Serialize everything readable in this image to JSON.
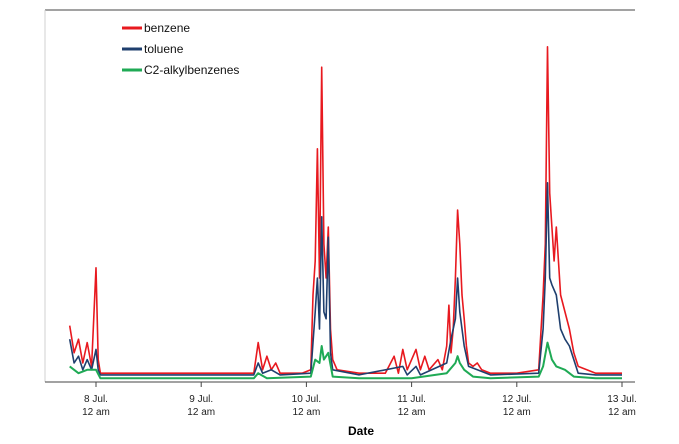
{
  "chart_data": {
    "type": "line",
    "title": "",
    "xlabel": "Date",
    "ylabel": "",
    "grid": false,
    "legend_position": "top-left",
    "x_range": [
      "2023-07-07T18:00",
      "2023-07-13T00:00"
    ],
    "y_range": [
      0,
      100
    ],
    "ticks": [
      {
        "date": "2023-07-08T00:00",
        "line1": "8 Jul.",
        "line2": "12 am"
      },
      {
        "date": "2023-07-09T00:00",
        "line1": "9 Jul.",
        "line2": "12 am"
      },
      {
        "date": "2023-07-10T00:00",
        "line1": "10 Jul.",
        "line2": "12 am"
      },
      {
        "date": "2023-07-11T00:00",
        "line1": "11 Jul.",
        "line2": "12 am"
      },
      {
        "date": "2023-07-12T00:00",
        "line1": "12 Jul.",
        "line2": "12 am"
      },
      {
        "date": "2023-07-13T00:00",
        "line1": "13 Jul.",
        "line2": "12 am"
      }
    ],
    "series": [
      {
        "name": "benzene",
        "color": "#e8191f",
        "points": [
          [
            "2023-07-07T18:00",
            16
          ],
          [
            "2023-07-07T19:00",
            8
          ],
          [
            "2023-07-07T20:00",
            12
          ],
          [
            "2023-07-07T21:00",
            5
          ],
          [
            "2023-07-07T22:00",
            11
          ],
          [
            "2023-07-07T23:00",
            4
          ],
          [
            "2023-07-08T00:00",
            33
          ],
          [
            "2023-07-08T00:30",
            6
          ],
          [
            "2023-07-08T01:00",
            2
          ],
          [
            "2023-07-08T06:00",
            2
          ],
          [
            "2023-07-08T12:00",
            2
          ],
          [
            "2023-07-08T18:00",
            2
          ],
          [
            "2023-07-09T00:00",
            2
          ],
          [
            "2023-07-09T06:00",
            2
          ],
          [
            "2023-07-09T12:00",
            2
          ],
          [
            "2023-07-09T13:00",
            11
          ],
          [
            "2023-07-09T14:00",
            3
          ],
          [
            "2023-07-09T15:00",
            7
          ],
          [
            "2023-07-09T16:00",
            3
          ],
          [
            "2023-07-09T17:00",
            5
          ],
          [
            "2023-07-09T18:00",
            2
          ],
          [
            "2023-07-09T23:00",
            2
          ],
          [
            "2023-07-10T01:00",
            3
          ],
          [
            "2023-07-10T01:30",
            25
          ],
          [
            "2023-07-10T02:00",
            35
          ],
          [
            "2023-07-10T02:30",
            68
          ],
          [
            "2023-07-10T03:00",
            30
          ],
          [
            "2023-07-10T03:30",
            92
          ],
          [
            "2023-07-10T04:00",
            40
          ],
          [
            "2023-07-10T04:30",
            30
          ],
          [
            "2023-07-10T05:00",
            45
          ],
          [
            "2023-07-10T05:30",
            15
          ],
          [
            "2023-07-10T06:00",
            6
          ],
          [
            "2023-07-10T07:00",
            3
          ],
          [
            "2023-07-10T12:00",
            2
          ],
          [
            "2023-07-10T18:00",
            2
          ],
          [
            "2023-07-10T20:00",
            7
          ],
          [
            "2023-07-10T21:00",
            2
          ],
          [
            "2023-07-10T22:00",
            9
          ],
          [
            "2023-07-10T23:00",
            3
          ],
          [
            "2023-07-11T01:00",
            9
          ],
          [
            "2023-07-11T02:00",
            3
          ],
          [
            "2023-07-11T03:00",
            7
          ],
          [
            "2023-07-11T04:00",
            3
          ],
          [
            "2023-07-11T06:00",
            6
          ],
          [
            "2023-07-11T07:00",
            3
          ],
          [
            "2023-07-11T08:00",
            10
          ],
          [
            "2023-07-11T08:30",
            22
          ],
          [
            "2023-07-11T09:00",
            8
          ],
          [
            "2023-07-11T09:30",
            15
          ],
          [
            "2023-07-11T10:00",
            30
          ],
          [
            "2023-07-11T10:30",
            50
          ],
          [
            "2023-07-11T11:00",
            40
          ],
          [
            "2023-07-11T11:30",
            25
          ],
          [
            "2023-07-11T12:00",
            18
          ],
          [
            "2023-07-11T12:30",
            10
          ],
          [
            "2023-07-11T13:00",
            5
          ],
          [
            "2023-07-11T14:00",
            4
          ],
          [
            "2023-07-11T15:00",
            5
          ],
          [
            "2023-07-11T16:00",
            3
          ],
          [
            "2023-07-11T18:00",
            2
          ],
          [
            "2023-07-12T00:00",
            2
          ],
          [
            "2023-07-12T05:00",
            3
          ],
          [
            "2023-07-12T06:00",
            25
          ],
          [
            "2023-07-12T06:30",
            40
          ],
          [
            "2023-07-12T07:00",
            98
          ],
          [
            "2023-07-12T07:30",
            55
          ],
          [
            "2023-07-12T08:00",
            45
          ],
          [
            "2023-07-12T08:30",
            35
          ],
          [
            "2023-07-12T09:00",
            45
          ],
          [
            "2023-07-12T10:00",
            25
          ],
          [
            "2023-07-12T11:00",
            20
          ],
          [
            "2023-07-12T12:00",
            15
          ],
          [
            "2023-07-12T13:00",
            8
          ],
          [
            "2023-07-12T14:00",
            4
          ],
          [
            "2023-07-12T18:00",
            2
          ],
          [
            "2023-07-13T00:00",
            2
          ]
        ]
      },
      {
        "name": "toluene",
        "color": "#1f3f6e",
        "points": [
          [
            "2023-07-07T18:00",
            12
          ],
          [
            "2023-07-07T19:00",
            5
          ],
          [
            "2023-07-07T20:00",
            7
          ],
          [
            "2023-07-07T21:00",
            3
          ],
          [
            "2023-07-07T22:00",
            6
          ],
          [
            "2023-07-07T23:00",
            3
          ],
          [
            "2023-07-08T00:00",
            9
          ],
          [
            "2023-07-08T00:30",
            3
          ],
          [
            "2023-07-08T01:00",
            1.5
          ],
          [
            "2023-07-08T12:00",
            1.5
          ],
          [
            "2023-07-09T00:00",
            1.5
          ],
          [
            "2023-07-09T12:00",
            1.5
          ],
          [
            "2023-07-09T13:00",
            5
          ],
          [
            "2023-07-09T14:00",
            2
          ],
          [
            "2023-07-09T16:00",
            3
          ],
          [
            "2023-07-09T18:00",
            1.5
          ],
          [
            "2023-07-10T01:00",
            2
          ],
          [
            "2023-07-10T02:00",
            20
          ],
          [
            "2023-07-10T02:30",
            30
          ],
          [
            "2023-07-10T03:00",
            15
          ],
          [
            "2023-07-10T03:30",
            48
          ],
          [
            "2023-07-10T04:00",
            20
          ],
          [
            "2023-07-10T04:30",
            18
          ],
          [
            "2023-07-10T05:00",
            42
          ],
          [
            "2023-07-10T05:30",
            8
          ],
          [
            "2023-07-10T06:00",
            3
          ],
          [
            "2023-07-10T12:00",
            1.5
          ],
          [
            "2023-07-10T22:00",
            4
          ],
          [
            "2023-07-10T23:00",
            1.5
          ],
          [
            "2023-07-11T01:00",
            4
          ],
          [
            "2023-07-11T02:00",
            1.5
          ],
          [
            "2023-07-11T08:00",
            5
          ],
          [
            "2023-07-11T09:00",
            12
          ],
          [
            "2023-07-11T10:00",
            18
          ],
          [
            "2023-07-11T10:30",
            30
          ],
          [
            "2023-07-11T11:00",
            20
          ],
          [
            "2023-07-11T12:00",
            10
          ],
          [
            "2023-07-11T13:00",
            4
          ],
          [
            "2023-07-11T15:00",
            3
          ],
          [
            "2023-07-11T18:00",
            1.5
          ],
          [
            "2023-07-12T05:00",
            2
          ],
          [
            "2023-07-12T06:00",
            15
          ],
          [
            "2023-07-12T06:30",
            30
          ],
          [
            "2023-07-12T07:00",
            58
          ],
          [
            "2023-07-12T07:30",
            30
          ],
          [
            "2023-07-12T08:00",
            28
          ],
          [
            "2023-07-12T09:00",
            25
          ],
          [
            "2023-07-12T10:00",
            15
          ],
          [
            "2023-07-12T11:00",
            12
          ],
          [
            "2023-07-12T12:00",
            10
          ],
          [
            "2023-07-12T13:00",
            6
          ],
          [
            "2023-07-12T14:00",
            2
          ],
          [
            "2023-07-12T18:00",
            1.5
          ],
          [
            "2023-07-13T00:00",
            1.5
          ]
        ]
      },
      {
        "name": "C2-alkylbenzenes",
        "color": "#1faa55",
        "points": [
          [
            "2023-07-07T18:00",
            4
          ],
          [
            "2023-07-07T20:00",
            2
          ],
          [
            "2023-07-07T22:00",
            3
          ],
          [
            "2023-07-08T00:00",
            3
          ],
          [
            "2023-07-08T01:00",
            0.5
          ],
          [
            "2023-07-08T12:00",
            0.5
          ],
          [
            "2023-07-09T00:00",
            0.5
          ],
          [
            "2023-07-09T12:00",
            0.5
          ],
          [
            "2023-07-09T13:00",
            2
          ],
          [
            "2023-07-09T15:00",
            0.5
          ],
          [
            "2023-07-10T01:00",
            1
          ],
          [
            "2023-07-10T02:00",
            6
          ],
          [
            "2023-07-10T03:00",
            5
          ],
          [
            "2023-07-10T03:30",
            10
          ],
          [
            "2023-07-10T04:00",
            6
          ],
          [
            "2023-07-10T05:00",
            8
          ],
          [
            "2023-07-10T06:00",
            1
          ],
          [
            "2023-07-10T12:00",
            0.5
          ],
          [
            "2023-07-11T00:00",
            0.5
          ],
          [
            "2023-07-11T08:00",
            2
          ],
          [
            "2023-07-11T10:00",
            5
          ],
          [
            "2023-07-11T10:30",
            7
          ],
          [
            "2023-07-11T11:00",
            5
          ],
          [
            "2023-07-11T12:00",
            3
          ],
          [
            "2023-07-11T14:00",
            1
          ],
          [
            "2023-07-11T18:00",
            0.5
          ],
          [
            "2023-07-12T05:00",
            1
          ],
          [
            "2023-07-12T06:00",
            4
          ],
          [
            "2023-07-12T07:00",
            11
          ],
          [
            "2023-07-12T08:00",
            6
          ],
          [
            "2023-07-12T09:00",
            4
          ],
          [
            "2023-07-12T11:00",
            3
          ],
          [
            "2023-07-12T13:00",
            1
          ],
          [
            "2023-07-12T18:00",
            0.5
          ],
          [
            "2023-07-13T00:00",
            0.5
          ]
        ]
      }
    ]
  }
}
